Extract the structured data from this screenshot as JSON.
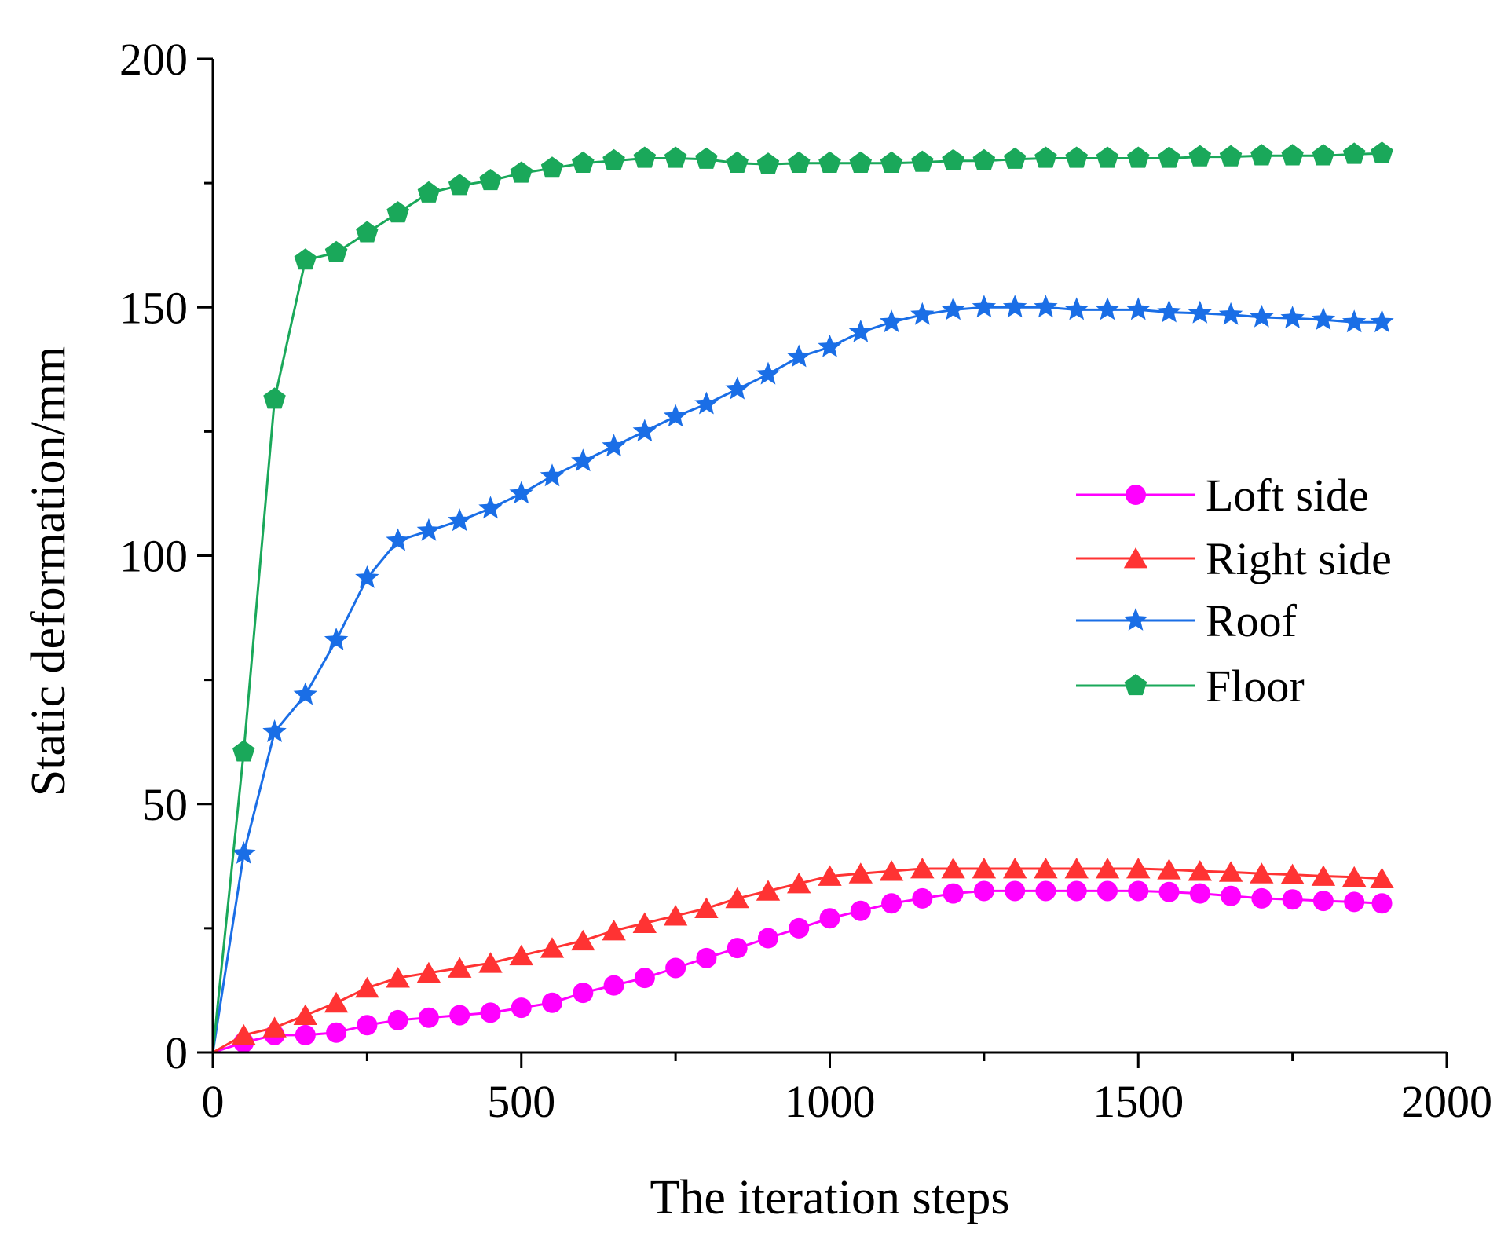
{
  "colors": {
    "loft_side": "#ff00ff",
    "right_side": "#ff3333",
    "roof": "#1a6ee6",
    "floor": "#1aa85a",
    "axis": "#000000"
  },
  "chart_data": {
    "type": "line",
    "title": "",
    "xlabel": "The iteration steps",
    "ylabel": "Static deformation/mm",
    "xlim": [
      0,
      2000
    ],
    "ylim": [
      0,
      200
    ],
    "x_ticks": [
      "0",
      "500",
      "1000",
      "1500",
      "2000"
    ],
    "y_ticks": [
      "0",
      "50",
      "100",
      "150",
      "200"
    ],
    "grid": false,
    "legend_position": "center-right",
    "x": [
      0,
      50,
      100,
      150,
      200,
      250,
      300,
      350,
      400,
      450,
      500,
      550,
      600,
      650,
      700,
      750,
      800,
      850,
      900,
      950,
      1000,
      1050,
      1100,
      1150,
      1200,
      1250,
      1300,
      1350,
      1400,
      1450,
      1500,
      1550,
      1600,
      1650,
      1700,
      1750,
      1800,
      1850,
      1895
    ],
    "series": [
      {
        "name": "Loft side",
        "color_key": "loft_side",
        "marker": "circle",
        "values": [
          0,
          2,
          3.5,
          3.5,
          4,
          5.5,
          6.5,
          7,
          7.5,
          8,
          9,
          10,
          12,
          13.5,
          15,
          17,
          19,
          21,
          23,
          25,
          27,
          28.5,
          30,
          31,
          32,
          32.5,
          32.5,
          32.5,
          32.5,
          32.5,
          32.5,
          32.3,
          32,
          31.5,
          31,
          30.8,
          30.5,
          30.3,
          30
        ]
      },
      {
        "name": "Right side",
        "color_key": "right_side",
        "marker": "triangle",
        "values": [
          0,
          3.5,
          5,
          7.5,
          10,
          13,
          15,
          16,
          17,
          18,
          19.5,
          21,
          22.5,
          24.5,
          26,
          27.5,
          29,
          31,
          32.5,
          34,
          35.5,
          36,
          36.5,
          37,
          37,
          37,
          37,
          37,
          37,
          37,
          37,
          36.8,
          36.5,
          36.3,
          36,
          35.8,
          35.5,
          35.3,
          35
        ]
      },
      {
        "name": "Roof",
        "color_key": "roof",
        "marker": "star",
        "values": [
          0,
          40,
          64.5,
          72,
          83,
          95.5,
          103,
          105,
          107,
          109.5,
          112.5,
          116,
          119,
          122,
          125,
          128,
          130.5,
          133.5,
          136.5,
          140,
          142,
          145,
          147,
          148.5,
          149.5,
          150,
          150,
          150,
          149.5,
          149.5,
          149.5,
          149,
          148.8,
          148.5,
          148,
          147.8,
          147.5,
          147,
          147
        ]
      },
      {
        "name": "Floor",
        "color_key": "floor",
        "marker": "pentagon",
        "values": [
          0,
          60.5,
          131.5,
          159.5,
          161,
          165,
          169,
          173,
          174.5,
          175.5,
          177,
          178,
          179,
          179.5,
          180,
          180,
          179.8,
          179,
          178.8,
          179,
          179,
          179,
          179,
          179.2,
          179.5,
          179.5,
          179.8,
          180,
          180,
          180,
          180,
          180,
          180.3,
          180.3,
          180.5,
          180.5,
          180.5,
          180.8,
          181
        ]
      }
    ]
  }
}
